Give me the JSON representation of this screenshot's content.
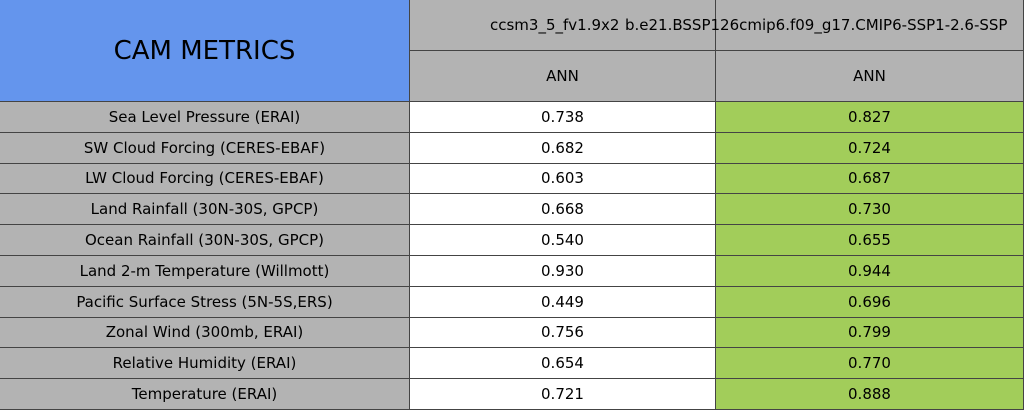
{
  "header": {
    "title": "CAM METRICS",
    "columns": [
      {
        "name": "ccsm3_5_fv1.9x2",
        "period": "ANN"
      },
      {
        "name": "b.e21.BSSP126cmip6.f09_g17.CMIP6-SSP1-2.6-SSP",
        "period": "ANN"
      }
    ]
  },
  "table": {
    "rows": [
      [
        "Sea Level Pressure (ERAI)",
        "0.738",
        "0.827"
      ],
      [
        "SW Cloud Forcing (CERES-EBAF)",
        "0.682",
        "0.724"
      ],
      [
        "LW Cloud Forcing (CERES-EBAF)",
        "0.603",
        "0.687"
      ],
      [
        "Land Rainfall (30N-30S, GPCP)",
        "0.668",
        "0.730"
      ],
      [
        "Ocean Rainfall (30N-30S, GPCP)",
        "0.540",
        "0.655"
      ],
      [
        "Land 2-m Temperature (Willmott)",
        "0.930",
        "0.944"
      ],
      [
        "Pacific Surface Stress (5N-5S,ERS)",
        "0.449",
        "0.696"
      ],
      [
        "Zonal Wind (300mb, ERAI)",
        "0.756",
        "0.799"
      ],
      [
        "Relative Humidity (ERAI)",
        "0.654",
        "0.770"
      ],
      [
        "Temperature (ERAI)",
        "0.721",
        "0.888"
      ]
    ]
  }
}
